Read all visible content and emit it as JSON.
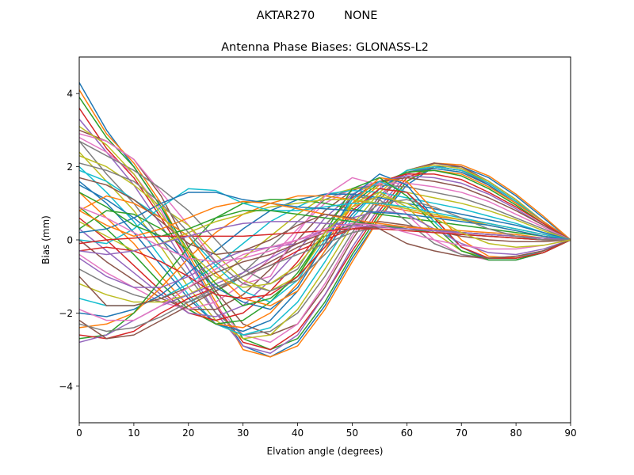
{
  "figure": {
    "suptitle": "AKTAR270        NONE"
  },
  "chart_data": {
    "type": "line",
    "title": "Antenna Phase Biases: GLONASS-L2",
    "xlabel": "Elvation angle (degrees)",
    "ylabel": "Bias (mm)",
    "xlim": [
      0,
      90
    ],
    "ylim": [
      -5,
      5
    ],
    "xticks": [
      0,
      10,
      20,
      30,
      40,
      50,
      60,
      70,
      80,
      90
    ],
    "yticks": [
      -4,
      -2,
      0,
      2,
      4
    ],
    "ytick_labels": [
      "−4",
      "−2",
      "0",
      "2",
      "4"
    ],
    "grid": false,
    "legend": "none",
    "colors": [
      "#1f77b4",
      "#ff7f0e",
      "#2ca02c",
      "#d62728",
      "#9467bd",
      "#8c564b",
      "#e377c2",
      "#7f7f7f",
      "#bcbd22",
      "#17becf"
    ],
    "x": [
      0,
      5,
      10,
      15,
      20,
      25,
      30,
      35,
      40,
      45,
      50,
      55,
      60,
      65,
      70,
      75,
      80,
      85,
      90
    ],
    "series": [
      {
        "values": [
          4.3,
          3.0,
          2.0,
          0.9,
          -0.5,
          -1.8,
          -2.9,
          -3.2,
          -2.8,
          -1.8,
          -0.5,
          0.6,
          1.5,
          2.0,
          2.0,
          1.7,
          1.2,
          0.6,
          0.0
        ]
      },
      {
        "values": [
          4.1,
          2.9,
          2.1,
          1.0,
          -0.4,
          -1.7,
          -3.0,
          -3.2,
          -2.9,
          -1.9,
          -0.6,
          0.6,
          1.6,
          2.1,
          2.05,
          1.75,
          1.25,
          0.65,
          0.0
        ]
      },
      {
        "values": [
          3.9,
          2.8,
          2.0,
          0.9,
          -0.3,
          -1.5,
          -2.7,
          -3.0,
          -2.7,
          -1.7,
          -0.4,
          0.7,
          1.6,
          2.0,
          1.9,
          1.6,
          1.1,
          0.5,
          0.0
        ]
      },
      {
        "values": [
          3.6,
          2.5,
          1.7,
          0.6,
          -0.6,
          -1.8,
          -2.8,
          -3.0,
          -2.5,
          -1.5,
          -0.3,
          0.8,
          1.7,
          2.0,
          1.9,
          1.5,
          1.0,
          0.5,
          0.0
        ]
      },
      {
        "values": [
          3.3,
          2.4,
          1.5,
          0.4,
          -0.8,
          -2.0,
          -2.9,
          -3.1,
          -2.6,
          -1.5,
          -0.2,
          0.9,
          1.8,
          2.1,
          2.0,
          1.6,
          1.1,
          0.5,
          0.0
        ]
      },
      {
        "values": [
          3.0,
          2.7,
          2.2,
          1.2,
          -0.2,
          -1.4,
          -2.3,
          -2.6,
          -2.3,
          -1.3,
          0.0,
          1.1,
          1.9,
          2.1,
          2.0,
          1.6,
          1.1,
          0.5,
          0.0
        ]
      },
      {
        "values": [
          2.8,
          2.4,
          1.8,
          0.8,
          -0.6,
          -1.8,
          -2.6,
          -2.8,
          -2.3,
          -1.2,
          0.1,
          1.2,
          1.9,
          2.05,
          1.95,
          1.6,
          1.1,
          0.5,
          0.0
        ]
      },
      {
        "values": [
          2.7,
          1.8,
          1.0,
          0.0,
          -1.0,
          -2.0,
          -2.6,
          -2.5,
          -2.0,
          -1.0,
          0.2,
          1.2,
          1.85,
          2.0,
          1.9,
          1.55,
          1.05,
          0.5,
          0.0
        ]
      },
      {
        "values": [
          2.4,
          1.6,
          0.8,
          -0.2,
          -1.3,
          -2.2,
          -2.7,
          -2.6,
          -1.9,
          -0.8,
          0.4,
          1.3,
          1.9,
          2.05,
          1.95,
          1.6,
          1.1,
          0.5,
          0.0
        ]
      },
      {
        "values": [
          2.0,
          1.3,
          0.5,
          -0.5,
          -1.5,
          -2.3,
          -2.6,
          -2.4,
          -1.7,
          -0.6,
          0.6,
          1.4,
          1.9,
          2.0,
          1.9,
          1.55,
          1.05,
          0.5,
          0.0
        ]
      },
      {
        "values": [
          1.6,
          1.0,
          0.2,
          -0.7,
          -1.6,
          -2.3,
          -2.5,
          -2.2,
          -1.4,
          -0.3,
          0.7,
          1.4,
          1.85,
          1.95,
          1.85,
          1.5,
          1.0,
          0.5,
          0.0
        ]
      },
      {
        "values": [
          1.3,
          0.6,
          -0.1,
          -1.0,
          -1.8,
          -2.3,
          -2.4,
          -2.0,
          -1.2,
          -0.1,
          0.9,
          1.5,
          1.85,
          1.9,
          1.8,
          1.45,
          1.0,
          0.5,
          0.0
        ]
      },
      {
        "values": [
          0.9,
          0.3,
          -0.4,
          -1.2,
          -1.9,
          -2.3,
          -2.2,
          -1.7,
          -0.9,
          0.2,
          1.0,
          1.55,
          1.85,
          1.9,
          1.75,
          1.4,
          0.95,
          0.45,
          0.0
        ]
      },
      {
        "values": [
          0.6,
          0.0,
          -0.7,
          -1.4,
          -2.0,
          -2.2,
          -2.0,
          -1.4,
          -0.6,
          0.4,
          1.15,
          1.6,
          1.8,
          1.8,
          1.65,
          1.3,
          0.9,
          0.45,
          0.0
        ]
      },
      {
        "values": [
          0.3,
          -0.3,
          -0.9,
          -1.5,
          -2.0,
          -2.1,
          -1.8,
          -1.1,
          -0.3,
          0.6,
          1.25,
          1.6,
          1.75,
          1.7,
          1.55,
          1.25,
          0.85,
          0.4,
          0.0
        ]
      },
      {
        "values": [
          0.0,
          -0.6,
          -1.1,
          -1.6,
          -1.9,
          -1.9,
          -1.5,
          -0.8,
          0.0,
          0.8,
          1.35,
          1.6,
          1.7,
          1.6,
          1.45,
          1.15,
          0.8,
          0.4,
          0.0
        ]
      },
      {
        "values": [
          -0.4,
          -0.9,
          -1.3,
          -1.7,
          -1.9,
          -1.7,
          -1.2,
          -0.5,
          0.3,
          1.0,
          1.4,
          1.55,
          1.55,
          1.45,
          1.3,
          1.05,
          0.7,
          0.35,
          0.0
        ]
      },
      {
        "values": [
          -0.8,
          -1.2,
          -1.5,
          -1.7,
          -1.7,
          -1.4,
          -0.9,
          -0.2,
          0.5,
          1.1,
          1.4,
          1.5,
          1.45,
          1.3,
          1.15,
          0.9,
          0.6,
          0.3,
          0.0
        ]
      },
      {
        "values": [
          -1.2,
          -1.5,
          -1.7,
          -1.7,
          -1.5,
          -1.1,
          -0.5,
          0.1,
          0.7,
          1.2,
          1.4,
          1.4,
          1.3,
          1.15,
          1.0,
          0.8,
          0.55,
          0.25,
          0.0
        ]
      },
      {
        "values": [
          -1.6,
          -1.8,
          -1.8,
          -1.6,
          -1.2,
          -0.7,
          -0.1,
          0.5,
          0.9,
          1.25,
          1.35,
          1.3,
          1.15,
          1.0,
          0.85,
          0.65,
          0.45,
          0.2,
          0.0
        ]
      },
      {
        "values": [
          -2.0,
          -2.1,
          -1.9,
          -1.5,
          -0.9,
          -0.3,
          0.3,
          0.8,
          1.1,
          1.25,
          1.25,
          1.15,
          1.0,
          0.85,
          0.7,
          0.55,
          0.4,
          0.2,
          0.0
        ]
      },
      {
        "values": [
          -2.4,
          -2.3,
          -2.0,
          -1.3,
          -0.5,
          0.2,
          0.7,
          1.0,
          1.2,
          1.2,
          1.1,
          0.95,
          0.8,
          0.65,
          0.55,
          0.45,
          0.3,
          0.15,
          0.0
        ]
      },
      {
        "values": [
          -2.7,
          -2.6,
          -2.0,
          -1.1,
          -0.2,
          0.6,
          1.0,
          1.1,
          1.1,
          1.0,
          0.85,
          0.7,
          0.6,
          0.5,
          0.4,
          0.3,
          0.2,
          0.1,
          0.0
        ]
      },
      {
        "values": [
          -2.6,
          -2.7,
          -2.5,
          -2.0,
          -1.6,
          -1.3,
          -1.0,
          -0.7,
          -0.3,
          0.0,
          0.3,
          0.4,
          0.35,
          0.25,
          0.2,
          0.15,
          0.1,
          0.05,
          0.0
        ]
      },
      {
        "values": [
          -2.8,
          -2.6,
          -2.2,
          -1.8,
          -1.5,
          -1.2,
          -0.9,
          -0.5,
          -0.1,
          0.2,
          0.35,
          0.4,
          0.35,
          0.3,
          0.2,
          0.15,
          0.1,
          0.05,
          0.0
        ]
      },
      {
        "values": [
          -2.2,
          -2.7,
          -2.6,
          -2.2,
          -1.8,
          -1.4,
          -1.0,
          -0.6,
          -0.2,
          0.1,
          0.3,
          0.35,
          0.3,
          0.25,
          0.2,
          0.15,
          0.1,
          0.05,
          0.0
        ]
      },
      {
        "values": [
          2.9,
          2.7,
          2.2,
          1.3,
          0.4,
          -0.6,
          -1.2,
          -1.0,
          0.2,
          1.2,
          1.7,
          1.5,
          0.7,
          0.0,
          -0.4,
          -0.55,
          -0.55,
          -0.35,
          0.0
        ]
      },
      {
        "values": [
          2.7,
          2.3,
          1.9,
          1.4,
          0.8,
          0.0,
          -0.8,
          -1.2,
          -0.8,
          0.4,
          1.2,
          1.1,
          0.5,
          -0.1,
          -0.4,
          -0.5,
          -0.45,
          -0.3,
          0.0
        ]
      },
      {
        "values": [
          2.3,
          2.0,
          1.5,
          0.9,
          0.4,
          -0.4,
          -1.1,
          -1.4,
          -1.0,
          0.1,
          1.0,
          1.3,
          0.9,
          0.2,
          -0.3,
          -0.5,
          -0.5,
          -0.3,
          0.0
        ]
      },
      {
        "values": [
          1.9,
          1.6,
          1.1,
          0.6,
          0.1,
          -0.7,
          -1.4,
          -1.7,
          -1.1,
          0.0,
          1.1,
          1.6,
          1.3,
          0.5,
          -0.2,
          -0.5,
          -0.5,
          -0.3,
          0.0
        ]
      },
      {
        "values": [
          1.5,
          1.1,
          0.6,
          0.0,
          -0.6,
          -1.3,
          -1.7,
          -1.9,
          -1.3,
          -0.1,
          1.2,
          1.8,
          1.5,
          0.6,
          -0.2,
          -0.55,
          -0.55,
          -0.35,
          0.0
        ]
      },
      {
        "values": [
          0.8,
          1.2,
          1.0,
          0.6,
          0.1,
          -0.9,
          -1.6,
          -1.8,
          -1.4,
          -0.3,
          1.0,
          1.7,
          1.6,
          0.8,
          0.0,
          -0.45,
          -0.5,
          -0.35,
          0.0
        ]
      },
      {
        "values": [
          0.3,
          0.8,
          0.7,
          0.3,
          -0.3,
          -1.2,
          -1.8,
          -1.6,
          -1.0,
          0.2,
          1.4,
          1.7,
          1.2,
          0.4,
          -0.3,
          -0.55,
          -0.55,
          -0.35,
          0.0
        ]
      },
      {
        "values": [
          -0.3,
          -0.2,
          -0.3,
          -0.6,
          -1.0,
          -1.5,
          -1.6,
          -1.5,
          -1.0,
          -0.2,
          0.8,
          1.4,
          1.3,
          0.6,
          -0.2,
          -0.5,
          -0.5,
          -0.35,
          0.0
        ]
      },
      {
        "values": [
          -0.5,
          -1.0,
          -1.3,
          -1.3,
          -1.0,
          -0.6,
          -0.3,
          -0.2,
          -0.1,
          0.3,
          0.6,
          0.8,
          0.7,
          0.3,
          -0.1,
          -0.35,
          -0.4,
          -0.25,
          0.0
        ]
      },
      {
        "values": [
          -1.0,
          -1.8,
          -1.8,
          -1.6,
          -1.3,
          -0.9,
          -0.6,
          -0.4,
          -0.1,
          0.2,
          0.4,
          0.5,
          0.4,
          0.25,
          0.1,
          0.0,
          -0.05,
          -0.05,
          0.0
        ]
      },
      {
        "values": [
          -1.9,
          -2.2,
          -2.2,
          -1.8,
          -1.3,
          -0.8,
          -0.4,
          -0.2,
          0.0,
          0.2,
          0.35,
          0.4,
          0.35,
          0.25,
          0.15,
          0.1,
          0.05,
          0.0,
          0.0
        ]
      },
      {
        "values": [
          -2.3,
          -2.5,
          -2.4,
          -2.1,
          -1.7,
          -1.3,
          -1.0,
          -0.7,
          -0.4,
          -0.1,
          0.2,
          0.35,
          0.35,
          0.3,
          0.2,
          0.15,
          0.1,
          0.05,
          0.0
        ]
      },
      {
        "values": [
          0.5,
          0.1,
          -0.3,
          -0.1,
          0.2,
          0.5,
          0.7,
          0.9,
          1.0,
          1.1,
          1.1,
          1.0,
          0.85,
          0.7,
          0.55,
          0.4,
          0.25,
          0.1,
          0.0
        ]
      },
      {
        "values": [
          0.0,
          -0.1,
          0.3,
          0.9,
          1.4,
          1.35,
          1.0,
          0.8,
          0.8,
          0.9,
          1.0,
          1.0,
          0.9,
          0.75,
          0.6,
          0.45,
          0.3,
          0.15,
          0.0
        ]
      },
      {
        "values": [
          0.2,
          0.3,
          0.6,
          1.0,
          1.3,
          1.3,
          1.1,
          1.0,
          0.9,
          0.85,
          0.8,
          0.75,
          0.7,
          0.6,
          0.5,
          0.4,
          0.25,
          0.1,
          0.0
        ]
      },
      {
        "values": [
          0.8,
          0.4,
          0.1,
          0.3,
          0.6,
          0.9,
          1.05,
          1.0,
          0.85,
          0.7,
          0.55,
          0.45,
          0.35,
          0.3,
          0.25,
          0.2,
          0.15,
          0.05,
          0.0
        ]
      },
      {
        "values": [
          1.3,
          0.9,
          0.4,
          0.1,
          0.3,
          0.6,
          0.8,
          0.8,
          0.7,
          0.6,
          0.5,
          0.4,
          0.3,
          0.2,
          0.15,
          0.1,
          0.05,
          0.0,
          0.0
        ]
      },
      {
        "values": [
          -0.1,
          0.0,
          0.05,
          0.1,
          0.1,
          0.1,
          0.1,
          0.15,
          0.2,
          0.25,
          0.3,
          0.3,
          0.25,
          0.2,
          0.15,
          0.1,
          0.05,
          0.0,
          0.0
        ]
      },
      {
        "values": [
          -0.3,
          -0.4,
          -0.3,
          -0.1,
          0.1,
          0.3,
          0.45,
          0.5,
          0.5,
          0.45,
          0.4,
          0.35,
          0.3,
          0.25,
          0.2,
          0.15,
          0.1,
          0.05,
          0.0
        ]
      },
      {
        "values": [
          1.7,
          1.5,
          1.1,
          0.5,
          -0.1,
          -0.4,
          -0.3,
          0.0,
          0.4,
          0.7,
          0.6,
          0.3,
          -0.1,
          -0.3,
          -0.45,
          -0.5,
          -0.45,
          -0.3,
          0.0
        ]
      },
      {
        "values": [
          0.9,
          0.6,
          0.2,
          -0.2,
          -0.5,
          -0.6,
          -0.5,
          -0.3,
          0.0,
          0.3,
          0.45,
          0.4,
          0.2,
          0.0,
          -0.15,
          -0.25,
          -0.25,
          -0.15,
          0.0
        ]
      },
      {
        "values": [
          2.1,
          1.9,
          1.6,
          1.0,
          0.2,
          -0.6,
          -1.2,
          -1.4,
          -1.1,
          -0.4,
          0.4,
          1.0,
          1.1,
          0.9,
          0.6,
          0.3,
          0.1,
          0.0,
          0.0
        ]
      },
      {
        "values": [
          3.1,
          2.6,
          1.8,
          0.7,
          -0.3,
          -1.0,
          -1.3,
          -1.2,
          -0.7,
          0.2,
          0.9,
          1.2,
          1.0,
          0.6,
          0.2,
          -0.1,
          -0.2,
          -0.15,
          0.0
        ]
      }
    ]
  }
}
